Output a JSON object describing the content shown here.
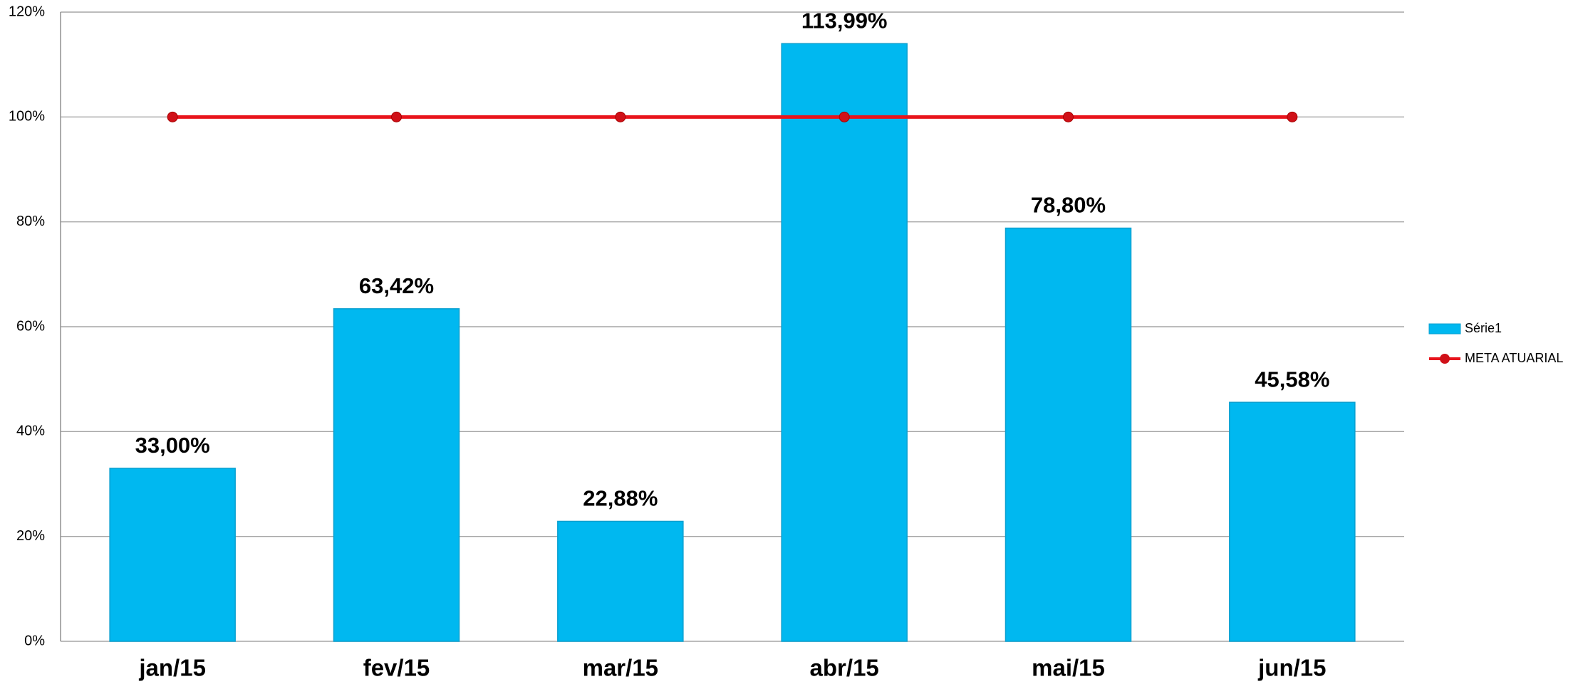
{
  "chart_data": {
    "type": "bar",
    "categories": [
      "jan/15",
      "fev/15",
      "mar/15",
      "abr/15",
      "mai/15",
      "jun/15"
    ],
    "series": [
      {
        "name": "Série1",
        "color": "#00b8f0",
        "values": [
          33.0,
          63.42,
          22.88,
          113.99,
          78.8,
          45.58
        ],
        "value_labels": [
          "33,00%",
          "63,42%",
          "22,88%",
          "113,99%",
          "78,80%",
          "45,58%"
        ]
      },
      {
        "name": "META ATUARIAL",
        "color": "#e8141c",
        "type": "line",
        "values": [
          100,
          100,
          100,
          100,
          100,
          100
        ]
      }
    ],
    "ylim": [
      0,
      120
    ],
    "yticks": [
      {
        "value": 0,
        "label": "0%"
      },
      {
        "value": 20,
        "label": "20%"
      },
      {
        "value": 40,
        "label": "40%"
      },
      {
        "value": 60,
        "label": "60%"
      },
      {
        "value": 80,
        "label": "80%"
      },
      {
        "value": 100,
        "label": "100%"
      },
      {
        "value": 120,
        "label": "120%"
      }
    ],
    "grid": true,
    "legend": "right"
  }
}
